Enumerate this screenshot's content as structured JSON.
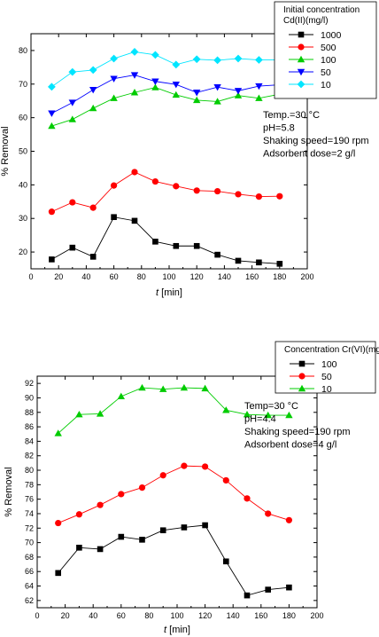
{
  "chart_data": [
    {
      "type": "line",
      "ylabel": "% Removal",
      "xlabel_italic": "t",
      "xlabel_unit": "[min]",
      "xlim": [
        0,
        200
      ],
      "ylim": [
        15,
        85
      ],
      "xticks": [
        "0",
        "20",
        "40",
        "60",
        "80",
        "100",
        "120",
        "140",
        "160",
        "180",
        "200"
      ],
      "yticks": [
        "20",
        "30",
        "40",
        "50",
        "60",
        "70",
        "80"
      ],
      "legend": {
        "placement": "top-right",
        "title_line1": "Initial concentration",
        "title_line2": "Cd(II)(mg/l)"
      },
      "annotations": [
        "Temp.=30 °C",
        "pH=5.8",
        "Shaking speed=190 rpm",
        "Adsorbent dose=2 g/l"
      ],
      "x": [
        15,
        30,
        45,
        60,
        75,
        90,
        105,
        120,
        135,
        150,
        165,
        180
      ],
      "series": [
        {
          "name": "1000",
          "color": "#000000",
          "marker": "square",
          "values": [
            17.8,
            21.3,
            18.6,
            30.4,
            29.3,
            23.1,
            21.8,
            21.8,
            19.2,
            17.4,
            16.9,
            16.5
          ]
        },
        {
          "name": "500",
          "color": "#ff0000",
          "marker": "circle",
          "values": [
            32.0,
            34.8,
            33.2,
            39.8,
            43.8,
            41.0,
            39.6,
            38.3,
            38.1,
            37.2,
            36.5,
            36.6
          ]
        },
        {
          "name": "100",
          "color": "#00cc00",
          "marker": "triangle-up",
          "values": [
            57.5,
            59.5,
            62.8,
            65.8,
            67.5,
            69.0,
            66.8,
            65.2,
            64.8,
            66.6,
            65.8,
            67.0
          ]
        },
        {
          "name": "50",
          "color": "#0000ff",
          "marker": "triangle-down",
          "values": [
            61.3,
            64.5,
            68.3,
            71.6,
            72.7,
            70.8,
            69.9,
            67.5,
            69.1,
            68.0,
            69.4,
            69.8
          ]
        },
        {
          "name": "10",
          "color": "#00e5ff",
          "marker": "diamond",
          "values": [
            69.2,
            73.6,
            74.2,
            77.6,
            79.6,
            78.7,
            75.8,
            77.4,
            77.1,
            77.6,
            77.2,
            77.2
          ]
        }
      ]
    },
    {
      "type": "line",
      "ylabel": "% Removal",
      "xlabel_italic": "t",
      "xlabel_unit": "[min]",
      "xlim": [
        0,
        200
      ],
      "ylim": [
        61,
        93
      ],
      "xticks": [
        "0",
        "20",
        "40",
        "60",
        "80",
        "100",
        "120",
        "140",
        "160",
        "180",
        "200"
      ],
      "yticks": [
        "62",
        "64",
        "66",
        "68",
        "70",
        "72",
        "74",
        "76",
        "78",
        "80",
        "82",
        "84",
        "86",
        "88",
        "90",
        "92"
      ],
      "legend": {
        "placement": "top-right",
        "title_line1": "Concentration Cr(VI)(mg/l)",
        "title_line2": ""
      },
      "annotations": [
        "Temp=30 °C",
        "pH=4.4",
        "Shaking speed=190 rpm",
        "Adsorbent dose=4 g/l"
      ],
      "x": [
        15,
        30,
        45,
        60,
        75,
        90,
        105,
        120,
        135,
        150,
        165,
        180
      ],
      "series": [
        {
          "name": "100",
          "color": "#000000",
          "marker": "square",
          "values": [
            65.8,
            69.3,
            69.1,
            70.8,
            70.4,
            71.7,
            72.1,
            72.4,
            67.4,
            62.7,
            63.5,
            63.8
          ]
        },
        {
          "name": "50",
          "color": "#ff0000",
          "marker": "circle",
          "values": [
            72.7,
            73.9,
            75.2,
            76.7,
            77.6,
            79.3,
            80.6,
            80.5,
            78.6,
            76.1,
            74.0,
            73.1
          ]
        },
        {
          "name": "10",
          "color": "#00cc00",
          "marker": "triangle-up",
          "values": [
            85.1,
            87.7,
            87.8,
            90.2,
            91.4,
            91.2,
            91.4,
            91.3,
            88.3,
            87.7,
            87.6,
            87.6
          ]
        }
      ]
    }
  ]
}
